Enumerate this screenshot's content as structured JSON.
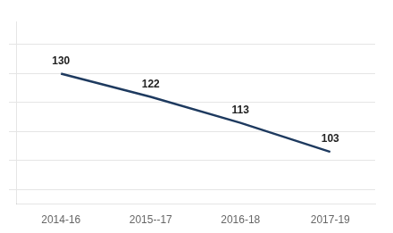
{
  "chart_data": {
    "type": "line",
    "categories": [
      "2014-16",
      "2015--17",
      "2016-18",
      "2017-19"
    ],
    "values": [
      130,
      122,
      113,
      103
    ],
    "color": "#1e3a5f",
    "ylim": [
      85,
      148
    ],
    "yticks": [
      90,
      100,
      110,
      120,
      130,
      140
    ],
    "grid": true,
    "data_labels": true,
    "tick_labels": "x"
  }
}
